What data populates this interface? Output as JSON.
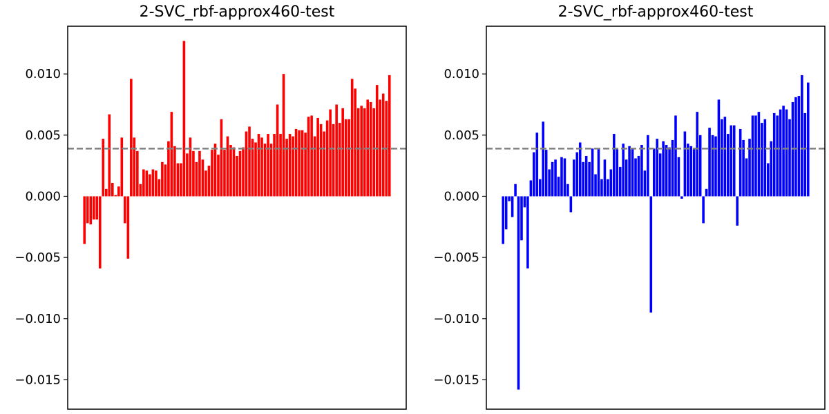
{
  "chart_data": [
    {
      "type": "bar",
      "title": "2-SVC_rbf-approx460-test",
      "xlabel": "",
      "ylabel": "",
      "ylim": [
        -0.0174,
        0.0139
      ],
      "yticks": [
        -0.015,
        -0.01,
        -0.005,
        0.0,
        0.005,
        0.01
      ],
      "ytick_labels": [
        "−0.015",
        "−0.010",
        "−0.005",
        "0.000",
        "0.005",
        "0.010"
      ],
      "xticks_visible": false,
      "grid": false,
      "bar_color": "#ff0000",
      "reference_line": {
        "value": 0.0039,
        "color": "#808080",
        "style": "dashed"
      },
      "values": [
        -0.0039,
        -0.0022,
        -0.0023,
        -0.0019,
        -0.0019,
        -0.0059,
        0.0047,
        0.0006,
        0.0067,
        0.0011,
        0.0001,
        0.0008,
        0.0048,
        -0.0022,
        -0.0051,
        0.0096,
        0.0048,
        0.0037,
        0.001,
        0.0022,
        0.0021,
        0.0018,
        0.0022,
        0.0021,
        0.0014,
        0.0028,
        0.0026,
        0.0045,
        0.0069,
        0.0041,
        0.0027,
        0.0027,
        0.0127,
        0.0035,
        0.0048,
        0.0037,
        0.0028,
        0.0037,
        0.003,
        0.0021,
        0.0025,
        0.0038,
        0.0043,
        0.0034,
        0.0063,
        0.0038,
        0.0049,
        0.0042,
        0.004,
        0.0033,
        0.0037,
        0.004,
        0.0053,
        0.0057,
        0.0047,
        0.0044,
        0.0051,
        0.0048,
        0.0043,
        0.0051,
        0.0043,
        0.0051,
        0.0075,
        0.0051,
        0.01,
        0.0047,
        0.0051,
        0.0049,
        0.0055,
        0.0054,
        0.0054,
        0.0052,
        0.0065,
        0.0066,
        0.0049,
        0.0064,
        0.0059,
        0.0053,
        0.0062,
        0.0071,
        0.0059,
        0.0075,
        0.006,
        0.0072,
        0.0063,
        0.0063,
        0.0096,
        0.0088,
        0.0072,
        0.0074,
        0.0072,
        0.0079,
        0.0077,
        0.0072,
        0.0091,
        0.0079,
        0.0084,
        0.0078,
        0.0099
      ]
    },
    {
      "type": "bar",
      "title": "2-SVC_rbf-approx460-test",
      "xlabel": "",
      "ylabel": "",
      "ylim": [
        -0.0174,
        0.0139
      ],
      "yticks": [
        -0.015,
        -0.01,
        -0.005,
        0.0,
        0.005,
        0.01
      ],
      "ytick_labels": [
        "−0.015",
        "−0.010",
        "−0.005",
        "0.000",
        "0.005",
        "0.010"
      ],
      "xticks_visible": false,
      "grid": false,
      "bar_color": "#0000ff",
      "reference_line": {
        "value": 0.0039,
        "color": "#808080",
        "style": "dashed"
      },
      "values": [
        -0.0039,
        -0.0027,
        -0.0004,
        -0.0017,
        0.001,
        -0.0158,
        -0.0036,
        -0.0009,
        -0.0059,
        0.0013,
        0.0036,
        0.0052,
        0.0014,
        0.0061,
        0.0038,
        0.0022,
        0.0028,
        0.003,
        0.0016,
        0.0032,
        0.0031,
        0.001,
        -0.0013,
        0.003,
        0.0036,
        0.0044,
        0.0028,
        0.0033,
        0.0028,
        0.0039,
        0.0018,
        0.0039,
        0.0014,
        0.003,
        0.0014,
        0.0022,
        0.0051,
        0.0039,
        0.0024,
        0.0043,
        0.003,
        0.0041,
        0.0039,
        0.0031,
        0.0033,
        0.0042,
        0.0021,
        0.005,
        -0.0095,
        0.0039,
        0.0047,
        0.0035,
        0.0045,
        0.0042,
        0.004,
        0.0046,
        0.0066,
        0.0032,
        -0.0002,
        0.0053,
        0.0043,
        0.0041,
        0.0039,
        0.0069,
        0.005,
        -0.0022,
        0.0006,
        0.0056,
        0.005,
        0.0049,
        0.0079,
        0.0063,
        0.0065,
        0.0051,
        0.0058,
        0.0058,
        -0.0024,
        0.0055,
        0.0046,
        0.0031,
        0.0047,
        0.0066,
        0.0066,
        0.0069,
        0.006,
        0.0063,
        0.0027,
        0.0045,
        0.0068,
        0.0066,
        0.0071,
        0.0074,
        0.0071,
        0.0063,
        0.0077,
        0.0081,
        0.0082,
        0.0099,
        0.0068,
        0.0093
      ]
    }
  ]
}
